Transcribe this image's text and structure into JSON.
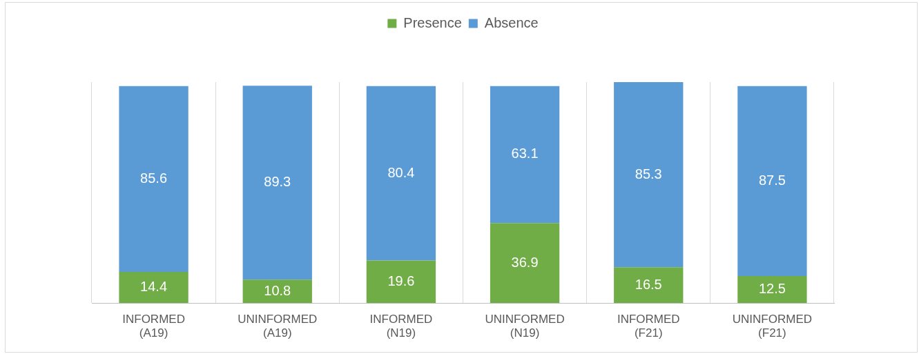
{
  "chart_data": {
    "type": "bar",
    "stacked": true,
    "data_labels": true,
    "grid": "x",
    "legend": "top",
    "categories": [
      "INFORMED (A19)",
      "UNINFORMED (A19)",
      "INFORMED (N19)",
      "UNINFORMED (N19)",
      "INFORMED (F21)",
      "UNINFORMED (F21)"
    ],
    "series": [
      {
        "name": "Presence",
        "color": "#70ad47",
        "values": [
          14.4,
          10.8,
          19.6,
          36.9,
          16.5,
          12.5
        ]
      },
      {
        "name": "Absence",
        "color": "#5b9bd5",
        "values": [
          85.6,
          89.3,
          80.4,
          63.1,
          85.3,
          87.5
        ]
      }
    ]
  }
}
